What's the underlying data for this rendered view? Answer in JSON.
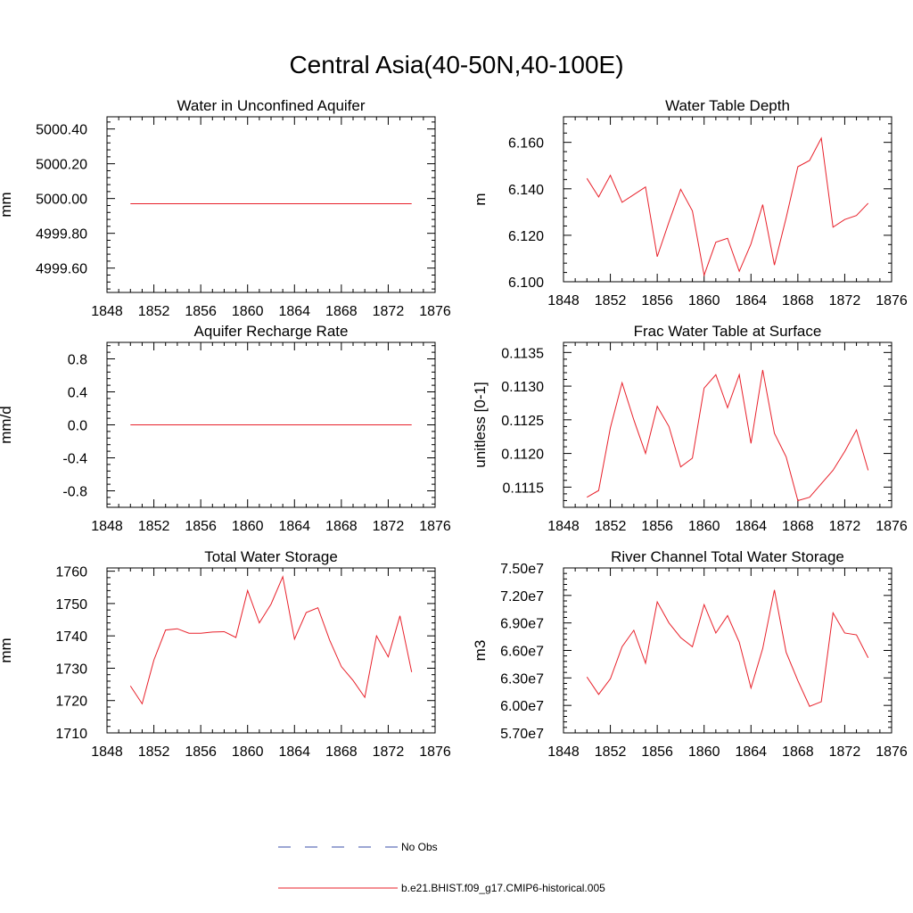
{
  "page": {
    "title": "Central Asia(40-50N,40-100E)"
  },
  "legend": {
    "items": [
      {
        "label": "No Obs",
        "color": "#3a4fa8",
        "style": "dashed"
      },
      {
        "label": "b.e21.BHIST.f09_g17.CMIP6-historical.005",
        "color": "#e8202a",
        "style": "solid"
      }
    ]
  },
  "chart_data": [
    {
      "type": "line",
      "title": "Water in Unconfined Aquifer",
      "ylabel": "mm",
      "xlim": [
        1848,
        1876
      ],
      "ylim": [
        4999.46,
        5000.47
      ],
      "xticks": [
        1848,
        1852,
        1856,
        1860,
        1864,
        1868,
        1872,
        1876
      ],
      "xtick_labels": [
        "1848",
        "1852",
        "1856",
        "1860",
        "1864",
        "1868",
        "1872",
        "1876"
      ],
      "yticks": [
        4999.6,
        4999.8,
        5000.0,
        5000.2,
        5000.4
      ],
      "ytick_labels": [
        "4999.60",
        "4999.80",
        "5000.00",
        "5000.20",
        "5000.40"
      ],
      "series": [
        {
          "color": "#e8202a",
          "x": [
            1850,
            1851,
            1852,
            1853,
            1854,
            1855,
            1856,
            1857,
            1858,
            1859,
            1860,
            1861,
            1862,
            1863,
            1864,
            1865,
            1866,
            1867,
            1868,
            1869,
            1870,
            1871,
            1872,
            1873,
            1874
          ],
          "y": [
            4999.97,
            4999.97,
            4999.97,
            4999.97,
            4999.97,
            4999.97,
            4999.97,
            4999.97,
            4999.97,
            4999.97,
            4999.97,
            4999.97,
            4999.97,
            4999.97,
            4999.97,
            4999.97,
            4999.97,
            4999.97,
            4999.97,
            4999.97,
            4999.97,
            4999.97,
            4999.97,
            4999.97,
            4999.97
          ]
        }
      ]
    },
    {
      "type": "line",
      "title": "Water Table Depth",
      "ylabel": "m",
      "xlim": [
        1848,
        1876
      ],
      "ylim": [
        6.1,
        6.171
      ],
      "xticks": [
        1848,
        1852,
        1856,
        1860,
        1864,
        1868,
        1872,
        1876
      ],
      "xtick_labels": [
        "1848",
        "1852",
        "1856",
        "1860",
        "1864",
        "1868",
        "1872",
        "1876"
      ],
      "yticks": [
        6.1,
        6.12,
        6.14,
        6.16
      ],
      "ytick_labels": [
        "6.100",
        "6.120",
        "6.140",
        "6.160"
      ],
      "series": [
        {
          "color": "#e8202a",
          "x": [
            1850,
            1851,
            1852,
            1853,
            1854,
            1855,
            1856,
            1857,
            1858,
            1859,
            1860,
            1861,
            1862,
            1863,
            1864,
            1865,
            1866,
            1867,
            1868,
            1869,
            1870,
            1871,
            1872,
            1873,
            1874
          ],
          "y": [
            6.1445,
            6.1365,
            6.1458,
            6.1342,
            6.1375,
            6.1408,
            6.1108,
            6.1257,
            6.1398,
            6.1305,
            6.1028,
            6.117,
            6.1187,
            6.1045,
            6.1163,
            6.1332,
            6.1072,
            6.1275,
            6.1495,
            6.1522,
            6.1618,
            6.1235,
            6.1268,
            6.1285,
            6.1338
          ]
        }
      ]
    },
    {
      "type": "line",
      "title": "Aquifer Recharge Rate",
      "ylabel": "mm/d",
      "xlim": [
        1848,
        1876
      ],
      "ylim": [
        -1.0,
        1.0
      ],
      "xticks": [
        1848,
        1852,
        1856,
        1860,
        1864,
        1868,
        1872,
        1876
      ],
      "xtick_labels": [
        "1848",
        "1852",
        "1856",
        "1860",
        "1864",
        "1868",
        "1872",
        "1876"
      ],
      "yticks": [
        -0.8,
        -0.4,
        0.0,
        0.4,
        0.8
      ],
      "ytick_labels": [
        "-0.8",
        "-0.4",
        "0.0",
        "0.4",
        "0.8"
      ],
      "series": [
        {
          "color": "#e8202a",
          "x": [
            1850,
            1851,
            1852,
            1853,
            1854,
            1855,
            1856,
            1857,
            1858,
            1859,
            1860,
            1861,
            1862,
            1863,
            1864,
            1865,
            1866,
            1867,
            1868,
            1869,
            1870,
            1871,
            1872,
            1873,
            1874
          ],
          "y": [
            0,
            0,
            0,
            0,
            0,
            0,
            0,
            0,
            0,
            0,
            0,
            0,
            0,
            0,
            0,
            0,
            0,
            0,
            0,
            0,
            0,
            0,
            0,
            0,
            0
          ]
        }
      ]
    },
    {
      "type": "line",
      "title": "Frac Water Table at Surface",
      "ylabel": "unitless [0-1]",
      "xlim": [
        1848,
        1876
      ],
      "ylim": [
        0.1112,
        0.11365
      ],
      "xticks": [
        1848,
        1852,
        1856,
        1860,
        1864,
        1868,
        1872,
        1876
      ],
      "xtick_labels": [
        "1848",
        "1852",
        "1856",
        "1860",
        "1864",
        "1868",
        "1872",
        "1876"
      ],
      "yticks": [
        0.1115,
        0.112,
        0.1125,
        0.113,
        0.1135
      ],
      "ytick_labels": [
        "0.1115",
        "0.1120",
        "0.1125",
        "0.1130",
        "0.1135"
      ],
      "series": [
        {
          "color": "#e8202a",
          "x": [
            1850,
            1851,
            1852,
            1853,
            1854,
            1855,
            1856,
            1857,
            1858,
            1859,
            1860,
            1861,
            1862,
            1863,
            1864,
            1865,
            1866,
            1867,
            1868,
            1869,
            1870,
            1871,
            1872,
            1873,
            1874
          ],
          "y": [
            0.11135,
            0.11145,
            0.11238,
            0.11305,
            0.1125,
            0.112,
            0.1127,
            0.1124,
            0.1118,
            0.11193,
            0.11297,
            0.11317,
            0.11268,
            0.11317,
            0.11215,
            0.11324,
            0.1123,
            0.11195,
            0.1113,
            0.11135,
            0.11155,
            0.11175,
            0.11203,
            0.11235,
            0.11175
          ]
        }
      ]
    },
    {
      "type": "line",
      "title": "Total Water Storage",
      "ylabel": "mm",
      "xlim": [
        1848,
        1876
      ],
      "ylim": [
        1710,
        1761
      ],
      "xticks": [
        1848,
        1852,
        1856,
        1860,
        1864,
        1868,
        1872,
        1876
      ],
      "xtick_labels": [
        "1848",
        "1852",
        "1856",
        "1860",
        "1864",
        "1868",
        "1872",
        "1876"
      ],
      "yticks": [
        1710,
        1720,
        1730,
        1740,
        1750,
        1760
      ],
      "ytick_labels": [
        "1710",
        "1720",
        "1730",
        "1740",
        "1750",
        "1760"
      ],
      "series": [
        {
          "color": "#e8202a",
          "x": [
            1850,
            1851,
            1852,
            1853,
            1854,
            1855,
            1856,
            1857,
            1858,
            1859,
            1860,
            1861,
            1862,
            1863,
            1864,
            1865,
            1866,
            1867,
            1868,
            1869,
            1870,
            1871,
            1872,
            1873,
            1874
          ],
          "y": [
            1724.5,
            1719,
            1732.5,
            1741.8,
            1742.2,
            1740.8,
            1740.8,
            1741.2,
            1741.3,
            1739.5,
            1754,
            1744,
            1749.8,
            1758.3,
            1739,
            1747.2,
            1748.7,
            1738.7,
            1730.5,
            1726.2,
            1721,
            1740,
            1733.5,
            1746.2,
            1728.8
          ]
        }
      ]
    },
    {
      "type": "line",
      "title": "River Channel Total Water Storage",
      "ylabel": "m3",
      "xlim": [
        1848,
        1876
      ],
      "ylim": [
        57000000,
        75000000
      ],
      "xticks": [
        1848,
        1852,
        1856,
        1860,
        1864,
        1868,
        1872,
        1876
      ],
      "xtick_labels": [
        "1848",
        "1852",
        "1856",
        "1860",
        "1864",
        "1868",
        "1872",
        "1876"
      ],
      "yticks": [
        57000000,
        60000000,
        63000000,
        66000000,
        69000000,
        72000000,
        75000000
      ],
      "ytick_labels": [
        "5.70e7",
        "6.00e7",
        "6.30e7",
        "6.60e7",
        "6.90e7",
        "7.20e7",
        "7.50e7"
      ],
      "series": [
        {
          "color": "#e8202a",
          "x": [
            1850,
            1851,
            1852,
            1853,
            1854,
            1855,
            1856,
            1857,
            1858,
            1859,
            1860,
            1861,
            1862,
            1863,
            1864,
            1865,
            1866,
            1867,
            1868,
            1869,
            1870,
            1871,
            1872,
            1873,
            1874
          ],
          "y": [
            63100000,
            61200000,
            62900000,
            66400000,
            68200000,
            64600000,
            71300000,
            69000000,
            67400000,
            66400000,
            71000000,
            67900000,
            69800000,
            66900000,
            61900000,
            66200000,
            72600000,
            65800000,
            62700000,
            59900000,
            60400000,
            70100000,
            67900000,
            67700000,
            65200000
          ]
        }
      ]
    }
  ]
}
